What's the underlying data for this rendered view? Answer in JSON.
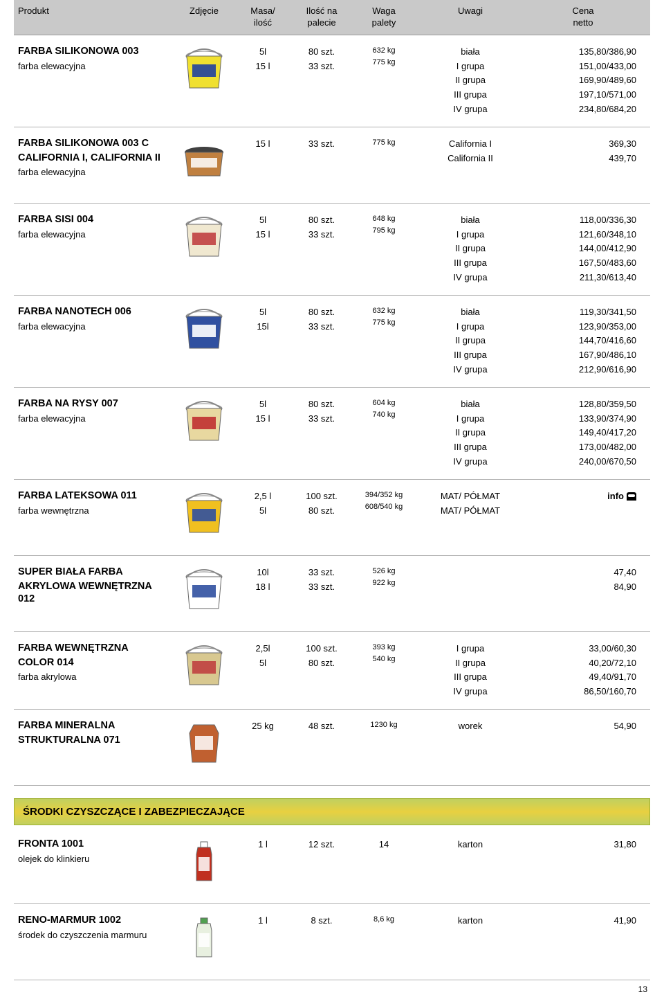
{
  "header": {
    "produkt": "Produkt",
    "zdjecie": "Zdjęcie",
    "masa1": "Masa/",
    "masa2": "ilość",
    "ilosc1": "Ilość na",
    "ilosc2": "palecie",
    "waga1": "Waga",
    "waga2": "palety",
    "uwagi": "Uwagi",
    "cena1": "Cena",
    "cena2": "netto"
  },
  "rows": [
    {
      "title": "FARBA SILIKONOWA 003",
      "sub": "farba elewacyjna",
      "thumb": {
        "type": "bucket",
        "body": "#f0e030",
        "lid": "#ffffff",
        "label": "#2040a0"
      },
      "mass": [
        "5l",
        "15 l"
      ],
      "pal": [
        "80 szt.",
        "33 szt."
      ],
      "wt": [
        "632 kg",
        "775 kg"
      ],
      "wt_sm": [
        true,
        true
      ],
      "note": [
        "biała",
        "I grupa",
        "II grupa",
        "III grupa",
        "IV grupa"
      ],
      "price": [
        "135,80/386,90",
        "151,00/433,00",
        "169,90/489,60",
        "197,10/571,00",
        "234,80/684,20"
      ]
    },
    {
      "title": "FARBA SILIKONOWA 003 C",
      "title2": "CALIFORNIA I, CALIFORNIA II",
      "sub": "farba elewacyjna",
      "thumb": {
        "type": "tub",
        "body": "#c08040",
        "lid": "#404040"
      },
      "mass": [
        "15 l"
      ],
      "pal": [
        "33 szt."
      ],
      "wt": [
        "775 kg"
      ],
      "wt_sm": [
        true
      ],
      "note": [
        "",
        "California I",
        "California II"
      ],
      "price": [
        "",
        "369,30",
        "439,70"
      ]
    },
    {
      "title": "FARBA SISI 004",
      "sub": "farba elewacyjna",
      "thumb": {
        "type": "bucket",
        "body": "#f0e8d0",
        "lid": "#ffffff",
        "label": "#c04040"
      },
      "mass": [
        "5l",
        "15 l"
      ],
      "pal": [
        "80 szt.",
        "33 szt."
      ],
      "wt": [
        "648 kg",
        "795 kg"
      ],
      "wt_sm": [
        true,
        true
      ],
      "note": [
        "biała",
        "I grupa",
        "II grupa",
        "III grupa",
        "IV grupa"
      ],
      "price": [
        "118,00/336,30",
        "121,60/348,10",
        "144,00/412,90",
        "167,50/483,60",
        "211,30/613,40"
      ]
    },
    {
      "title": "FARBA NANOTECH 006",
      "sub": "farba elewacyjna",
      "thumb": {
        "type": "bucket",
        "body": "#3050a0",
        "lid": "#ffffff",
        "label": "#ffffff"
      },
      "mass": [
        "5l",
        "15l"
      ],
      "pal": [
        "80 szt.",
        "33 szt."
      ],
      "wt": [
        "632 kg",
        "775 kg"
      ],
      "wt_sm": [
        true,
        true
      ],
      "note": [
        "biała",
        "I grupa",
        "II grupa",
        "III grupa",
        "IV grupa"
      ],
      "price": [
        "119,30/341,50",
        "123,90/353,00",
        "144,70/416,60",
        "167,90/486,10",
        "212,90/616,90"
      ]
    },
    {
      "title": "FARBA NA RYSY 007",
      "sub": "farba elewacyjna",
      "thumb": {
        "type": "bucket",
        "body": "#e8d8a0",
        "lid": "#ffffff",
        "label": "#c03030"
      },
      "mass": [
        "5l",
        "15 l"
      ],
      "pal": [
        "80 szt.",
        "33 szt."
      ],
      "wt": [
        "604 kg",
        "740 kg"
      ],
      "wt_sm": [
        true,
        true
      ],
      "note": [
        "biała",
        "I grupa",
        "II grupa",
        "III grupa",
        "IV grupa"
      ],
      "price": [
        "128,80/359,50",
        "133,90/374,90",
        "149,40/417,20",
        "173,00/482,00",
        "240,00/670,50"
      ]
    },
    {
      "title": "FARBA LATEKSOWA 011",
      "sub": "farba wewnętrzna",
      "thumb": {
        "type": "bucket",
        "body": "#f0c020",
        "lid": "#ffffff",
        "label": "#3050a0"
      },
      "mass": [
        "2,5 l",
        "5l"
      ],
      "pal": [
        "100 szt.",
        "80 szt."
      ],
      "wt": [
        "394/352 kg",
        "608/540 kg"
      ],
      "wt_sm": [
        true,
        true
      ],
      "note": [
        "MAT/ PÓŁMAT",
        "MAT/ PÓŁMAT"
      ],
      "price_special": "info",
      "price_phone": true
    },
    {
      "title": "SUPER BIAŁA FARBA",
      "title2": "AKRYLOWA WEWNĘTRZNA 012",
      "thumb": {
        "type": "bucket",
        "body": "#ffffff",
        "lid": "#ffffff",
        "label": "#3050a0"
      },
      "mass": [
        "10l",
        "18 l"
      ],
      "pal": [
        "33 szt.",
        "33 szt."
      ],
      "wt": [
        "526 kg",
        "922 kg"
      ],
      "wt_sm": [
        true,
        true
      ],
      "note": [],
      "price": [
        "47,40",
        "84,90"
      ]
    },
    {
      "title": "FARBA WEWNĘTRZNA",
      "title2": "COLOR 014",
      "sub": "farba akrylowa",
      "thumb": {
        "type": "bucket",
        "body": "#d8c890",
        "lid": "#ffffff",
        "label": "#c04040"
      },
      "mass": [
        "2,5l",
        "5l"
      ],
      "pal": [
        "100 szt.",
        "80 szt."
      ],
      "wt": [
        "393 kg",
        "540 kg"
      ],
      "wt_sm": [
        true,
        true
      ],
      "note": [
        "I grupa",
        "II grupa",
        "III grupa",
        "IV grupa"
      ],
      "price": [
        "33,00/60,30",
        "40,20/72,10",
        "49,40/91,70",
        "86,50/160,70"
      ]
    },
    {
      "title": "FARBA MINERALNA",
      "title2": "STRUKTURALNA 071",
      "thumb": {
        "type": "bag",
        "body": "#c06030"
      },
      "mass": [
        "25 kg"
      ],
      "pal": [
        "48 szt."
      ],
      "wt": [
        "1230 kg"
      ],
      "wt_sm": [
        true
      ],
      "note": [
        "worek"
      ],
      "price": [
        "54,90"
      ]
    }
  ],
  "section_title": "ŚRODKI CZYSZCZĄCE I ZABEZPIECZAJĄCE",
  "rows2": [
    {
      "title": "FRONTA 1001",
      "sub": "olejek do klinkieru",
      "thumb": {
        "type": "bottle",
        "body": "#c03020",
        "cap": "#ffffff"
      },
      "mass": [
        "1 l"
      ],
      "pal": [
        "12 szt."
      ],
      "wt": [
        "14"
      ],
      "wt_sm": [
        false
      ],
      "note": [
        "karton"
      ],
      "price": [
        "31,80"
      ]
    },
    {
      "title": "RENO-MARMUR 1002",
      "sub": "środek do czyszczenia marmuru",
      "thumb": {
        "type": "bottle",
        "body": "#e8f0e0",
        "cap": "#50a050"
      },
      "mass": [
        "1 l"
      ],
      "pal": [
        "8 szt."
      ],
      "wt": [
        "8,6 kg"
      ],
      "wt_sm": [
        true
      ],
      "note": [
        "karton"
      ],
      "price": [
        "41,90"
      ]
    }
  ],
  "page_number": "13"
}
